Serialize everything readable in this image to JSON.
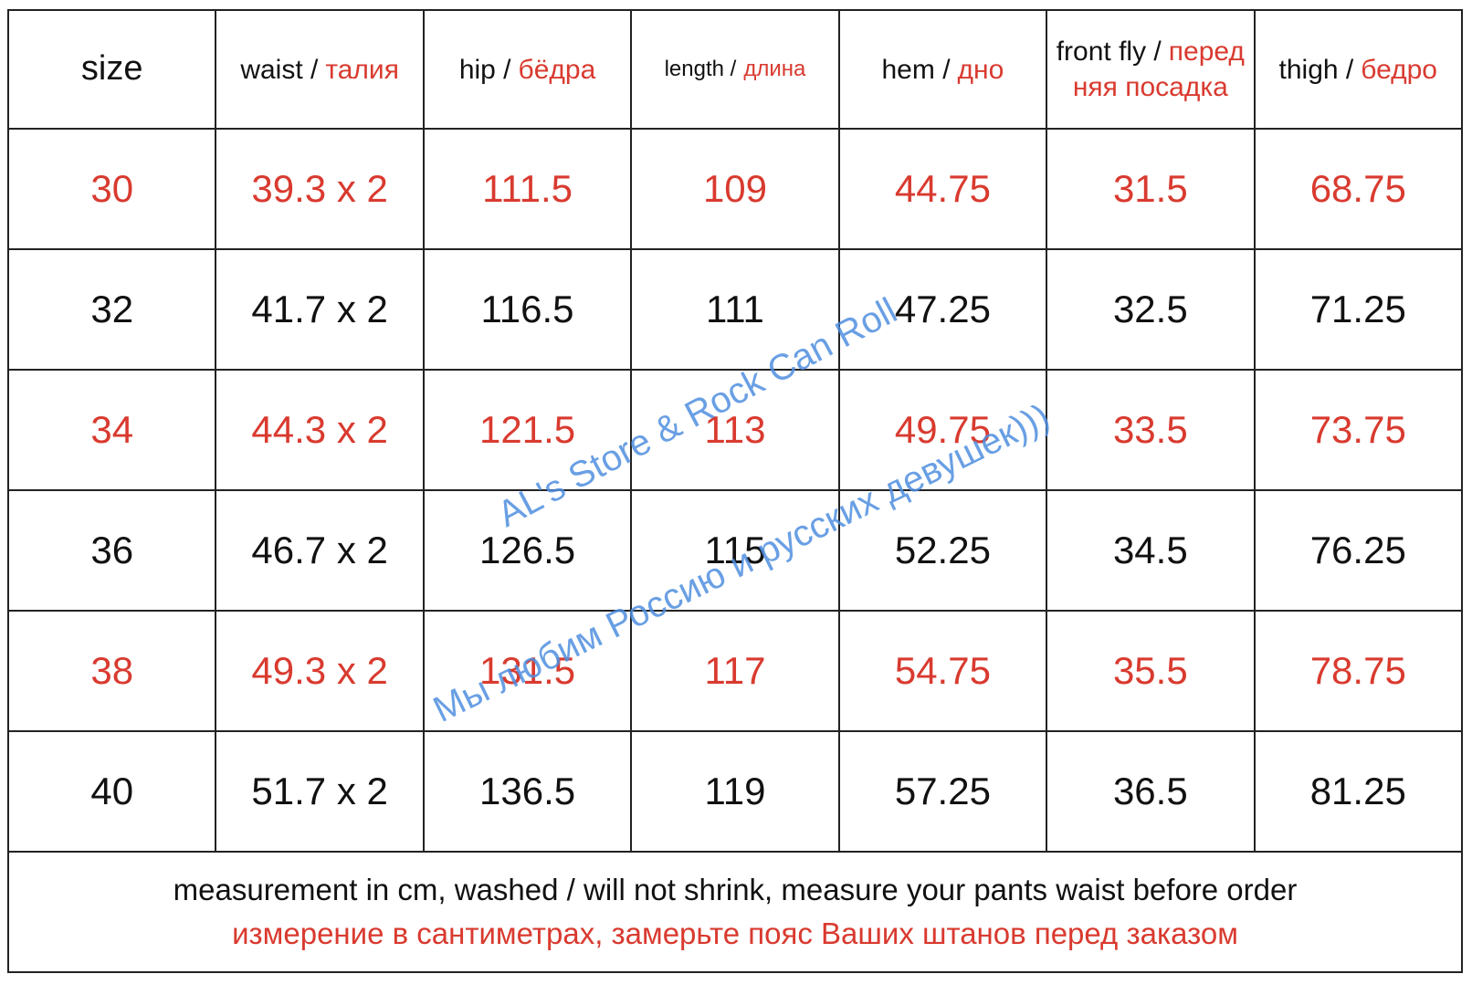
{
  "table": {
    "header": [
      {
        "en": "size"
      },
      {
        "en": "waist /",
        "ru": "талия"
      },
      {
        "en": "hip /",
        "ru": "бёдра"
      },
      {
        "en": "length /",
        "ru": "длина"
      },
      {
        "en": "hem /",
        "ru": "дно"
      },
      {
        "en": "front fly /",
        "ru": "передняя посадка"
      },
      {
        "en": "thigh /",
        "ru": "бедро"
      }
    ],
    "rows": [
      [
        30,
        "39.3 x 2",
        111.5,
        109,
        44.75,
        31.5,
        68.75
      ],
      [
        32,
        "41.7 x 2",
        116.5,
        111,
        47.25,
        32.5,
        71.25
      ],
      [
        34,
        "44.3 x 2",
        121.5,
        113,
        49.75,
        33.5,
        73.75
      ],
      [
        36,
        "46.7 x 2",
        126.5,
        115,
        52.25,
        34.5,
        76.25
      ],
      [
        38,
        "49.3 x 2",
        131.5,
        117,
        54.75,
        35.5,
        78.75
      ],
      [
        40,
        "51.7 x 2",
        136.5,
        119,
        57.25,
        36.5,
        81.25
      ]
    ],
    "footer": {
      "en": "measurement in cm, washed / will not shrink, measure your pants waist before order",
      "ru": "измерение в сантиметрах, замерьте пояс Ваших штанов перед заказом"
    }
  },
  "watermark": [
    "AL's Store & Rock Can Roll",
    "Мы любим Россию и русских девушек)))"
  ]
}
